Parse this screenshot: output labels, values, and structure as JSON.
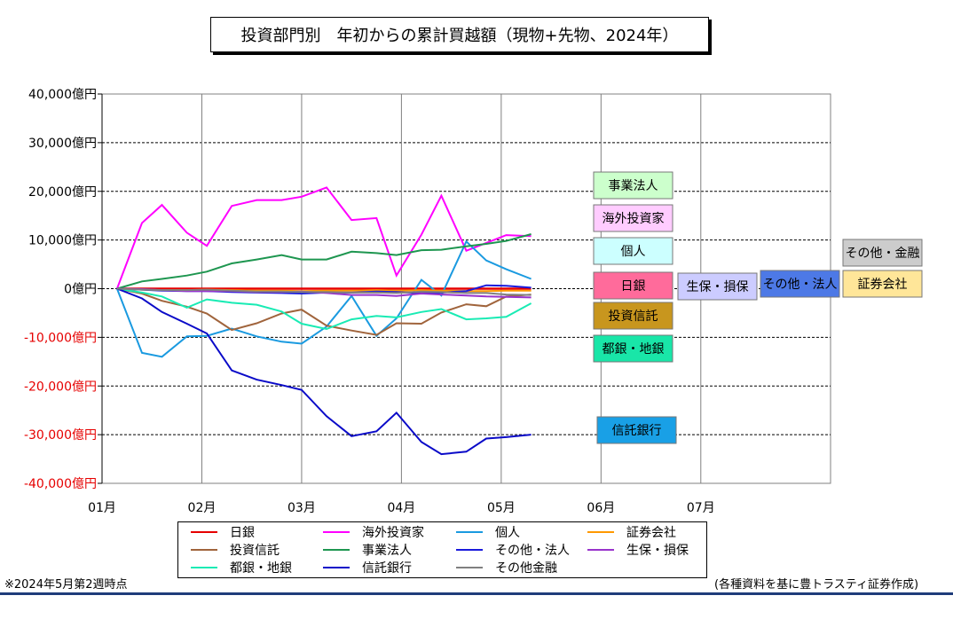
{
  "title": "投資部門別　年初からの累計買越額（現物+先物、2024年）",
  "notes": {
    "left": "※2024年5月第2週時点",
    "right": "(各種資料を基に豊トラスティ証券作成)"
  },
  "chart_data": {
    "type": "line",
    "title": "投資部門別　年初からの累計買越額（現物+先物、2024年）",
    "xlabel": "",
    "ylabel": "",
    "ylim": [
      -40000,
      40000
    ],
    "y_ticks": [
      {
        "value": 40000,
        "label": "40,000億円"
      },
      {
        "value": 30000,
        "label": "30,000億円"
      },
      {
        "value": 20000,
        "label": "20,000億円"
      },
      {
        "value": 10000,
        "label": "10,000億円"
      },
      {
        "value": 0,
        "label": "0億円"
      },
      {
        "value": -10000,
        "label": "-10,000億円"
      },
      {
        "value": -20000,
        "label": "-20,000億円"
      },
      {
        "value": -30000,
        "label": "-30,000億円"
      },
      {
        "value": -40000,
        "label": "-40,000億円"
      }
    ],
    "x_ticks": [
      "01月",
      "02月",
      "03月",
      "04月",
      "05月",
      "06月",
      "07月"
    ],
    "grid": true,
    "legend_position": "bottom",
    "x": [
      0.15,
      0.4,
      0.6,
      0.85,
      1.05,
      1.3,
      1.55,
      1.8,
      2.0,
      2.25,
      2.5,
      2.75,
      2.95,
      3.2,
      3.4,
      3.65,
      3.85,
      4.05,
      4.3
    ],
    "series": [
      {
        "name": "日銀",
        "color": "#e60000",
        "label_bg": "#ff6b9b",
        "label_text": "日銀",
        "values": [
          0,
          0,
          0,
          0,
          0,
          0,
          0,
          0,
          0,
          0,
          0,
          0,
          0,
          0,
          0,
          0,
          0,
          0,
          0
        ]
      },
      {
        "name": "海外投資家",
        "color": "#ff00ff",
        "label_bg": "#ffccff",
        "label_text": "海外投資家",
        "values": [
          0,
          13500,
          17200,
          11500,
          8800,
          17000,
          18200,
          18200,
          18900,
          20800,
          14100,
          14500,
          2700,
          11100,
          19100,
          7800,
          9400,
          11000,
          10800
        ]
      },
      {
        "name": "個人",
        "color": "#1a9ae0",
        "label_bg": "#ccffff",
        "label_text": "個人",
        "values": [
          0,
          -13200,
          -14000,
          -9800,
          -9700,
          -8200,
          -9800,
          -10900,
          -11300,
          -7800,
          -1500,
          -9700,
          -6100,
          1800,
          -1400,
          9700,
          5800,
          4000,
          2000
        ]
      },
      {
        "name": "証券会社",
        "color": "#ff9900",
        "label_bg": "#ffe699",
        "label_text": "証券会社",
        "values": [
          0,
          -200,
          -300,
          -300,
          -200,
          -300,
          -400,
          -400,
          -500,
          -400,
          -400,
          -300,
          -400,
          -300,
          -400,
          -500,
          -500,
          -400,
          -400
        ]
      },
      {
        "name": "投資信託",
        "color": "#a0643c",
        "label_bg": "#c8961e",
        "label_text": "投資信託",
        "values": [
          0,
          -1000,
          -2500,
          -3700,
          -5100,
          -8500,
          -7100,
          -5100,
          -4300,
          -7600,
          -8600,
          -9500,
          -7100,
          -7200,
          -4900,
          -3200,
          -3600,
          -1600,
          -1200
        ]
      },
      {
        "name": "事業法人",
        "color": "#1e9650",
        "label_bg": "#ccffcc",
        "label_text": "事業法人",
        "values": [
          0,
          1500,
          2000,
          2700,
          3500,
          5200,
          6000,
          6900,
          6000,
          6000,
          7600,
          7300,
          6900,
          7900,
          8000,
          8700,
          9200,
          9800,
          11200
        ]
      },
      {
        "name": "その他・法人",
        "color": "#1a1adc",
        "label_bg": "#4d79e6",
        "label_text": "その他・法人",
        "values": [
          0,
          -200,
          -400,
          -500,
          -500,
          -700,
          -800,
          -900,
          -1000,
          -800,
          -800,
          -600,
          -700,
          -900,
          -800,
          -500,
          700,
          600,
          200
        ]
      },
      {
        "name": "生保・損保",
        "color": "#9933cc",
        "label_bg": "#ccccff",
        "label_text": "生保・損保",
        "values": [
          0,
          -100,
          -300,
          -500,
          -500,
          -500,
          -700,
          -700,
          -600,
          -900,
          -1300,
          -1300,
          -1500,
          -1000,
          -1200,
          -1400,
          -1600,
          -1700,
          -1800
        ]
      },
      {
        "name": "都銀・地銀",
        "color": "#19ebb4",
        "label_bg": "#19e6a8",
        "label_text": "都銀・地銀",
        "values": [
          0,
          -800,
          -1600,
          -3900,
          -2200,
          -2900,
          -3300,
          -4700,
          -7200,
          -8300,
          -6300,
          -5600,
          -5900,
          -4800,
          -4200,
          -6300,
          -6100,
          -5800,
          -3000
        ]
      },
      {
        "name": "信託銀行",
        "color": "#0a0ac8",
        "label_bg": "#19a0e6",
        "label_text": "信託銀行",
        "values": [
          0,
          -2000,
          -4800,
          -7200,
          -9200,
          -16800,
          -18700,
          -19800,
          -20800,
          -26200,
          -30300,
          -29300,
          -25500,
          -31500,
          -34000,
          -33500,
          -30800,
          -30500,
          -30000
        ]
      },
      {
        "name": "その他金融",
        "color": "#808080",
        "label_bg": "#cccccc",
        "label_text": "その他・金融",
        "values": [
          0,
          -200,
          -300,
          -300,
          -200,
          -400,
          -600,
          -600,
          -700,
          -700,
          -800,
          -800,
          -900,
          -600,
          -700,
          -900,
          -900,
          -1200,
          -1300
        ]
      }
    ]
  }
}
